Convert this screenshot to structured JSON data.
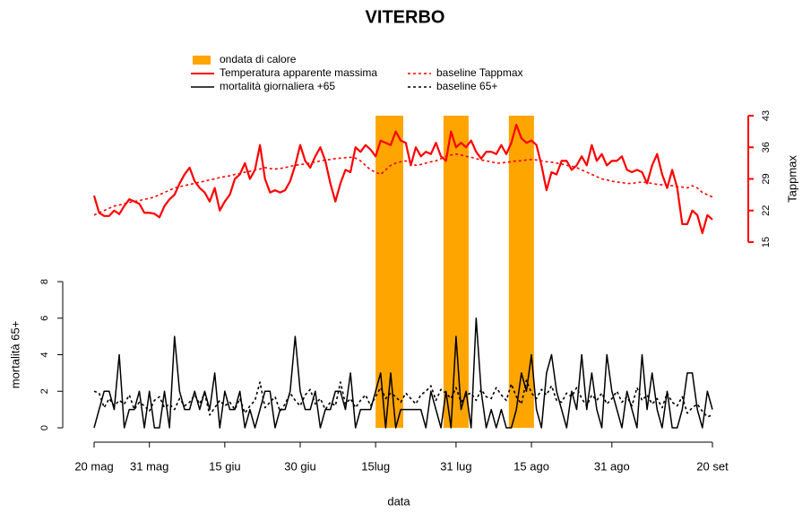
{
  "chart_data": [
    {
      "type": "line",
      "title": "VITERBO",
      "ylabel": "Tappmax",
      "axis_side": "right",
      "axis_color": "#ff0000",
      "ylim": [
        15,
        43
      ],
      "yticks": [
        15,
        22,
        29,
        36,
        43
      ],
      "series": [
        {
          "name": "Temperatura apparente massima",
          "color": "#ff0000",
          "linestyle": "solid",
          "width": 2.2,
          "values": [
            25.3,
            21.5,
            20.8,
            20.8,
            22,
            21.2,
            23,
            24.5,
            24,
            23.5,
            21.5,
            21.5,
            21.3,
            20.5,
            23,
            24.5,
            25.5,
            28,
            30,
            31.5,
            28.5,
            27,
            26,
            24,
            27,
            22,
            24,
            25.5,
            29,
            30,
            32.5,
            29,
            31,
            36.5,
            29,
            26,
            26.5,
            26,
            26.5,
            28.5,
            32,
            36.5,
            33,
            31.5,
            34,
            36,
            33,
            28,
            24,
            28,
            31,
            30.5,
            36,
            35,
            36.5,
            35.5,
            34,
            37.5,
            37,
            36.5,
            39.5,
            37.5,
            37,
            32,
            36,
            34,
            35,
            34.5,
            37,
            34,
            33,
            39.5,
            36,
            37,
            36,
            37.5,
            35,
            33.5,
            35,
            35,
            34.5,
            36.5,
            34.5,
            37,
            41,
            38,
            37,
            37.5,
            36.5,
            32,
            26.5,
            30.5,
            30,
            33,
            33,
            31,
            32,
            34,
            32,
            36.5,
            33,
            34.5,
            32,
            33,
            33,
            34,
            31,
            30.5,
            31,
            30.5,
            28,
            32,
            34.5,
            30,
            27,
            31,
            27,
            19,
            19,
            22,
            21,
            17,
            21,
            20
          ]
        },
        {
          "name": "baseline Tappmax",
          "color": "#ff0000",
          "linestyle": "dotted",
          "width": 1.6,
          "values": [
            21,
            21.5,
            22,
            22.5,
            23,
            23.2,
            23.5,
            23.8,
            24,
            24.2,
            24.5,
            24.7,
            25,
            25.5,
            26,
            26.5,
            27,
            27.3,
            27.5,
            27.8,
            28,
            28.3,
            28.5,
            28.8,
            29,
            29.3,
            29.5,
            29.7,
            30,
            30.2,
            30.5,
            30.7,
            31,
            31.2,
            31.5,
            31.3,
            31.2,
            31.3,
            31.5,
            31.8,
            32,
            32.2,
            32.3,
            32.5,
            32.7,
            33,
            33.2,
            33.3,
            33.5,
            33.6,
            33.7,
            33.8,
            33.6,
            33,
            32,
            31,
            30.5,
            30,
            31,
            32,
            32.5,
            32.8,
            33,
            32.5,
            32,
            32.2,
            32.5,
            32.8,
            33,
            33.5,
            34,
            34.3,
            34.5,
            34.3,
            34,
            33.8,
            33.5,
            33.2,
            33,
            32.8,
            32.5,
            32.5,
            32.7,
            32.8,
            33,
            33,
            33.2,
            33.3,
            33.2,
            33,
            32.8,
            32.7,
            32.5,
            32.3,
            32,
            31.8,
            31.5,
            31,
            30.5,
            30,
            29.5,
            29,
            28.8,
            28.5,
            28.3,
            28.2,
            28,
            28,
            28.2,
            28.3,
            28.2,
            28,
            27.8,
            27.7,
            27.5,
            27.5,
            27.3,
            27.2,
            27,
            27.5,
            27,
            26,
            25.5,
            25
          ]
        }
      ]
    },
    {
      "type": "line",
      "ylabel": "mortalità 65+",
      "xlabel": "data",
      "axis_side": "left",
      "axis_color": "#000000",
      "ylim": [
        0,
        8
      ],
      "yticks": [
        0,
        2,
        4,
        6,
        8
      ],
      "xlim": [
        0,
        123
      ],
      "xticks": [
        {
          "value": 0,
          "label": "20 mag"
        },
        {
          "value": 11,
          "label": "31 mag"
        },
        {
          "value": 26,
          "label": "15 giu"
        },
        {
          "value": 41,
          "label": "30 giu"
        },
        {
          "value": 56,
          "label": "15lug"
        },
        {
          "value": 72,
          "label": "31 lug"
        },
        {
          "value": 87,
          "label": "15 ago"
        },
        {
          "value": 103,
          "label": "31 ago"
        },
        {
          "value": 123,
          "label": "20 set"
        }
      ],
      "heatwaves": {
        "name": "ondata di calore",
        "color": "#ffa500",
        "ranges": [
          [
            56,
            61.5
          ],
          [
            69.5,
            74.5
          ],
          [
            82.5,
            87.5
          ]
        ]
      },
      "series": [
        {
          "name": "mortalità giornaliera +65",
          "color": "#000000",
          "linestyle": "solid",
          "width": 1.5,
          "values": [
            0,
            1,
            2,
            2,
            1,
            4,
            0,
            1,
            1,
            2,
            0,
            2,
            0,
            0,
            2,
            0,
            5,
            2,
            1,
            1,
            2,
            1,
            2,
            1,
            3,
            0,
            2,
            1,
            1,
            2,
            0,
            1,
            0,
            1,
            2,
            2,
            0,
            1,
            1,
            2,
            5,
            2,
            1,
            1,
            2,
            0,
            1,
            1,
            2,
            2,
            1,
            3,
            0,
            1,
            1,
            1,
            2,
            3,
            0,
            3,
            0,
            1,
            1,
            1,
            1,
            1,
            0,
            2,
            1,
            0,
            2,
            0,
            5,
            1,
            2,
            0,
            6,
            2,
            0,
            1,
            0,
            1,
            0,
            0,
            1,
            3,
            2,
            4,
            1,
            0,
            3,
            4,
            2,
            1,
            0,
            2,
            1,
            4,
            1,
            3,
            1,
            0,
            4,
            2,
            1,
            0,
            2,
            1,
            0,
            4,
            1,
            3,
            1,
            0,
            2,
            0,
            0,
            1,
            3,
            3,
            1,
            0,
            2,
            1
          ]
        },
        {
          "name": "baseline 65+",
          "color": "#000000",
          "linestyle": "dotted",
          "width": 1.6,
          "values": [
            2,
            1.9,
            1.1,
            1.6,
            1.2,
            1.5,
            1.3,
            1.8,
            1,
            1.4,
            1.2,
            0.9,
            1.5,
            1.7,
            1.1,
            1.3,
            1,
            1.6,
            1.2,
            1.4,
            1.8,
            1.3,
            1.9,
            0.7,
            1.1,
            1.5,
            1.2,
            1.4,
            1,
            1.6,
            0.8,
            1.2,
            1.5,
            2.5,
            1.1,
            1.4,
            1.7,
            0.9,
            1.3,
            1.9,
            1.5,
            1.2,
            1.8,
            2.1,
            1.3,
            1.6,
            1,
            1.4,
            1.2,
            2.5,
            1.3,
            1.6,
            1.1,
            1.5,
            1.8,
            1.2,
            1.7,
            2.2,
            1.6,
            1.9,
            1.7,
            1.4,
            1.9,
            1.6,
            1.3,
            1.8,
            2,
            2.3,
            1.5,
            2.1,
            1.9,
            1.6,
            2.2,
            1.4,
            1.8,
            1.9,
            1.5,
            2.1,
            1.7,
            1.6,
            2.2,
            1.8,
            1.5,
            2.4,
            1.7,
            1.3,
            2.6,
            1.9,
            1.6,
            2.1,
            1.8,
            2.3,
            1.5,
            1.4,
            1.9,
            1.7,
            2.2,
            1.6,
            1.2,
            1.8,
            1.5,
            1.9,
            1.3,
            1.6,
            2,
            1.4,
            1.7,
            1.2,
            2.2,
            1.5,
            1.8,
            1.3,
            1.6,
            1.1,
            1.9,
            1.4,
            1.2,
            1.7,
            0.8,
            1.1,
            1.3,
            0.9,
            0.6,
            0.7
          ]
        }
      ]
    }
  ]
}
